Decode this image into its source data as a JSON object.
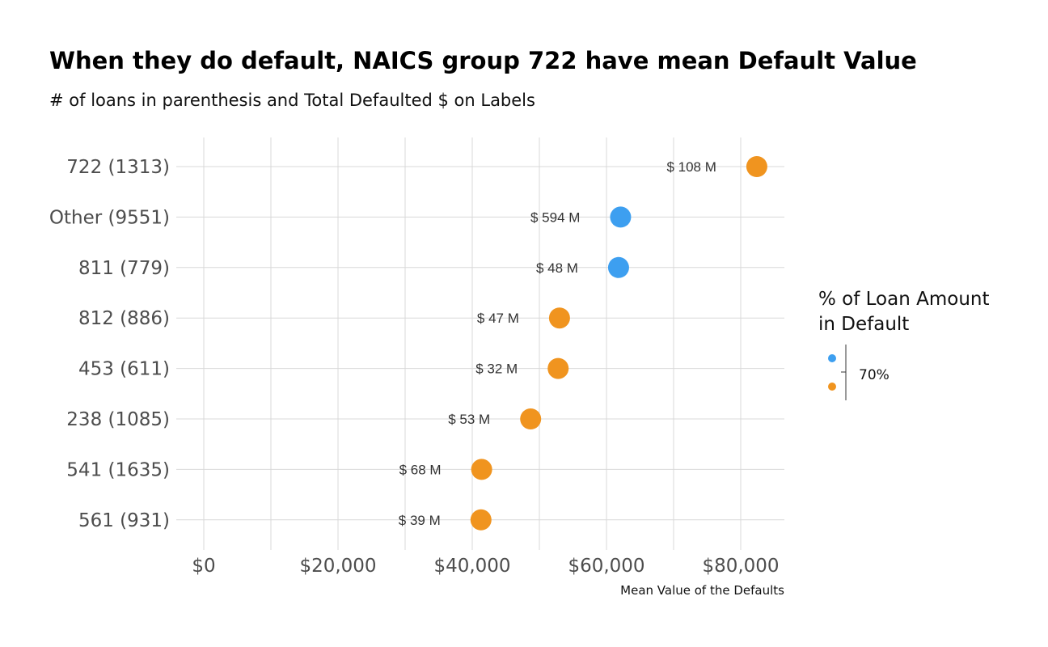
{
  "chart_data": {
    "type": "scatter",
    "title": "When they do default, NAICS group 722 have mean Default Value",
    "subtitle": "# of loans in parenthesis and Total Defaulted $ on Labels",
    "xlabel": "Mean Value of the Defaults",
    "ylabel": "",
    "xlim": [
      0,
      86500
    ],
    "x_ticks": [
      0,
      20000,
      40000,
      60000,
      80000
    ],
    "x_tick_labels": [
      "$0",
      "$20,000",
      "$40,000",
      "$60,000",
      "$80,000"
    ],
    "grid": true,
    "categories": [
      "722 (1313)",
      "Other (9551)",
      "811 (779)",
      "812 (886)",
      "453 (611)",
      "238 (1085)",
      "541 (1635)",
      "561 (931)"
    ],
    "values": [
      82400,
      62100,
      61800,
      53000,
      52800,
      48700,
      41400,
      41300
    ],
    "labels": [
      "$ 108 M",
      "$ 594 M",
      "$ 48 M",
      "$ 47 M",
      "$ 32 M",
      "$ 53 M",
      "$ 68 M",
      "$ 39 M"
    ],
    "point_colors": [
      "#f0941f",
      "#3d9ff0",
      "#3d9ff0",
      "#f0941f",
      "#f0941f",
      "#f0941f",
      "#f0941f",
      "#f0941f"
    ],
    "legend": {
      "title_lines": [
        "% of Loan Amount",
        "in Default"
      ],
      "break_label": "70%",
      "colors": [
        "#3d9ff0",
        "#f0941f"
      ],
      "placement": "right"
    }
  }
}
